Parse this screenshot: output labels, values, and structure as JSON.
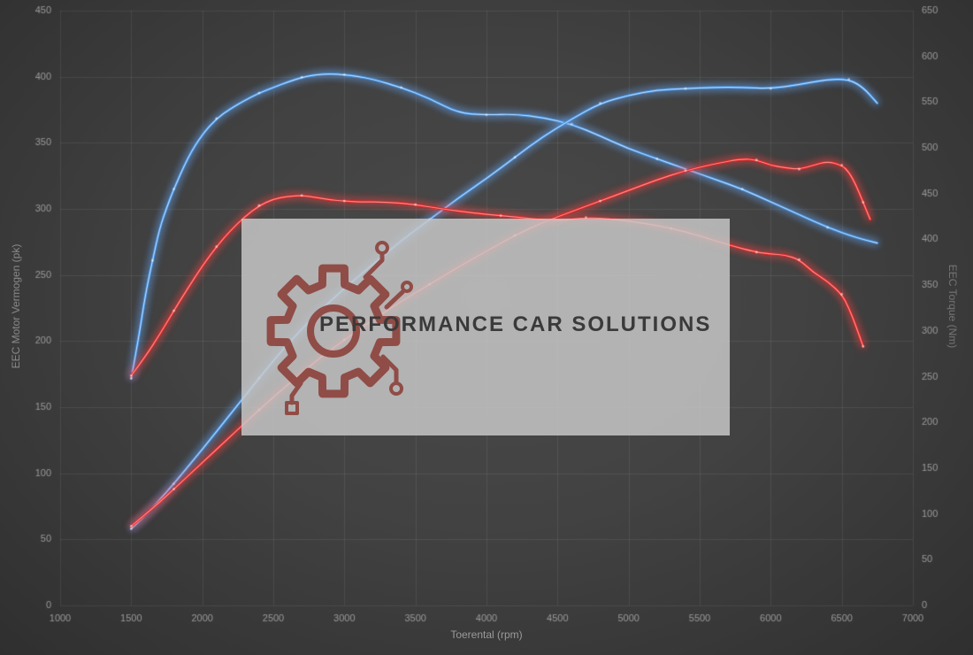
{
  "watermark": {
    "text": "PERFORMANCE CAR SOLUTIONS",
    "panel_color": "rgba(200,200,200,0.84)",
    "logo_color": "#8a3a33",
    "text_color": "#3a3a3a",
    "logo_icon": "gear-circuit-logo"
  },
  "chart_data": {
    "type": "line",
    "title": "",
    "grid": true,
    "legend_position": "none",
    "background": {
      "center": "#4a4a4a",
      "edge": "#2f2f2f",
      "grid": "rgba(255,255,255,0.08)",
      "tick_color": "#9a9a9a"
    },
    "x_axis": {
      "label": "Toerental (rpm)",
      "min": 1000,
      "max": 7000,
      "ticks": [
        1000,
        1500,
        2000,
        2500,
        3000,
        3500,
        4000,
        4500,
        5000,
        5500,
        6000,
        6500,
        7000
      ]
    },
    "y_left": {
      "label": "EEC Motor Vermogen (pk)",
      "min": 0,
      "max": 450,
      "ticks": [
        0,
        50,
        100,
        150,
        200,
        250,
        300,
        350,
        400,
        450
      ]
    },
    "y_right": {
      "label": "EEC Torque (Nm)",
      "min": 0,
      "max": 650,
      "ticks": [
        0,
        50,
        100,
        150,
        200,
        250,
        300,
        350,
        400,
        450,
        500,
        550,
        600,
        650
      ]
    },
    "series": [
      {
        "name": "torque-tuned-blue",
        "axis": "right",
        "color": "#2f86e0",
        "glow": "rgba(110,175,255,0.85)",
        "core": "#d7eaff",
        "points": [
          [
            1500,
            248
          ],
          [
            1550,
            290
          ],
          [
            1600,
            340
          ],
          [
            1650,
            377
          ],
          [
            1700,
            412
          ],
          [
            1750,
            435
          ],
          [
            1800,
            455
          ],
          [
            1900,
            490
          ],
          [
            2000,
            515
          ],
          [
            2100,
            532
          ],
          [
            2200,
            543
          ],
          [
            2300,
            552
          ],
          [
            2400,
            560
          ],
          [
            2500,
            566
          ],
          [
            2600,
            572
          ],
          [
            2700,
            577
          ],
          [
            2800,
            580
          ],
          [
            2900,
            581
          ],
          [
            3000,
            580
          ],
          [
            3100,
            578
          ],
          [
            3200,
            575
          ],
          [
            3400,
            566
          ],
          [
            3600,
            554
          ],
          [
            3800,
            538
          ],
          [
            4000,
            536
          ],
          [
            4200,
            537
          ],
          [
            4400,
            533
          ],
          [
            4600,
            526
          ],
          [
            4800,
            513
          ],
          [
            5000,
            499
          ],
          [
            5200,
            488
          ],
          [
            5400,
            477
          ],
          [
            5600,
            466
          ],
          [
            5800,
            455
          ],
          [
            6000,
            441
          ],
          [
            6200,
            427
          ],
          [
            6400,
            413
          ],
          [
            6600,
            402
          ],
          [
            6750,
            396
          ]
        ]
      },
      {
        "name": "power-tuned-blue",
        "axis": "left",
        "color": "#2f86e0",
        "glow": "rgba(110,175,255,0.85)",
        "core": "#d7eaff",
        "points": [
          [
            1500,
            58
          ],
          [
            1600,
            68
          ],
          [
            1700,
            80
          ],
          [
            1800,
            92
          ],
          [
            2000,
            118
          ],
          [
            2200,
            145
          ],
          [
            2400,
            172
          ],
          [
            2600,
            198
          ],
          [
            2800,
            220
          ],
          [
            3000,
            240
          ],
          [
            3200,
            258
          ],
          [
            3400,
            276
          ],
          [
            3600,
            292
          ],
          [
            3800,
            308
          ],
          [
            4000,
            323
          ],
          [
            4200,
            339
          ],
          [
            4400,
            355
          ],
          [
            4600,
            368
          ],
          [
            4800,
            380
          ],
          [
            5000,
            386
          ],
          [
            5200,
            390
          ],
          [
            5400,
            391
          ],
          [
            5600,
            392
          ],
          [
            5800,
            392
          ],
          [
            6000,
            391
          ],
          [
            6200,
            394
          ],
          [
            6400,
            398
          ],
          [
            6550,
            398
          ],
          [
            6650,
            392
          ],
          [
            6750,
            380
          ]
        ]
      },
      {
        "name": "torque-stock-red",
        "axis": "right",
        "color": "#e21212",
        "glow": "rgba(255,70,70,0.85)",
        "core": "#ffb0b0",
        "points": [
          [
            1500,
            251
          ],
          [
            1600,
            272
          ],
          [
            1700,
            296
          ],
          [
            1800,
            322
          ],
          [
            1900,
            347
          ],
          [
            2000,
            371
          ],
          [
            2100,
            392
          ],
          [
            2200,
            410
          ],
          [
            2300,
            425
          ],
          [
            2400,
            437
          ],
          [
            2500,
            444
          ],
          [
            2600,
            447
          ],
          [
            2700,
            448
          ],
          [
            2800,
            446
          ],
          [
            2900,
            443
          ],
          [
            3000,
            442
          ],
          [
            3100,
            441
          ],
          [
            3300,
            441
          ],
          [
            3500,
            438
          ],
          [
            3700,
            433
          ],
          [
            3900,
            429
          ],
          [
            4100,
            426
          ],
          [
            4300,
            423
          ],
          [
            4500,
            420
          ],
          [
            4700,
            424
          ],
          [
            4900,
            422
          ],
          [
            5100,
            418
          ],
          [
            5300,
            412
          ],
          [
            5500,
            404
          ],
          [
            5700,
            394
          ],
          [
            5900,
            386
          ],
          [
            6000,
            384
          ],
          [
            6100,
            383
          ],
          [
            6200,
            378
          ],
          [
            6300,
            364
          ],
          [
            6400,
            354
          ],
          [
            6500,
            340
          ],
          [
            6550,
            325
          ],
          [
            6600,
            305
          ],
          [
            6650,
            283
          ]
        ]
      },
      {
        "name": "power-stock-red",
        "axis": "left",
        "color": "#e21212",
        "glow": "rgba(255,70,70,0.85)",
        "core": "#ffb0b0",
        "points": [
          [
            1500,
            60
          ],
          [
            1600,
            69
          ],
          [
            1700,
            78
          ],
          [
            1800,
            88
          ],
          [
            2000,
            108
          ],
          [
            2200,
            128
          ],
          [
            2400,
            148
          ],
          [
            2600,
            167
          ],
          [
            2800,
            185
          ],
          [
            3000,
            201
          ],
          [
            3200,
            216
          ],
          [
            3400,
            230
          ],
          [
            3600,
            243
          ],
          [
            3800,
            256
          ],
          [
            4000,
            268
          ],
          [
            4200,
            280
          ],
          [
            4400,
            290
          ],
          [
            4600,
            298
          ],
          [
            4800,
            306
          ],
          [
            5000,
            314
          ],
          [
            5200,
            322
          ],
          [
            5400,
            329
          ],
          [
            5600,
            334
          ],
          [
            5800,
            338
          ],
          [
            5900,
            337
          ],
          [
            6000,
            333
          ],
          [
            6100,
            331
          ],
          [
            6200,
            330
          ],
          [
            6300,
            333
          ],
          [
            6400,
            336
          ],
          [
            6500,
            333
          ],
          [
            6550,
            328
          ],
          [
            6600,
            318
          ],
          [
            6650,
            305
          ],
          [
            6700,
            292
          ]
        ]
      }
    ]
  }
}
